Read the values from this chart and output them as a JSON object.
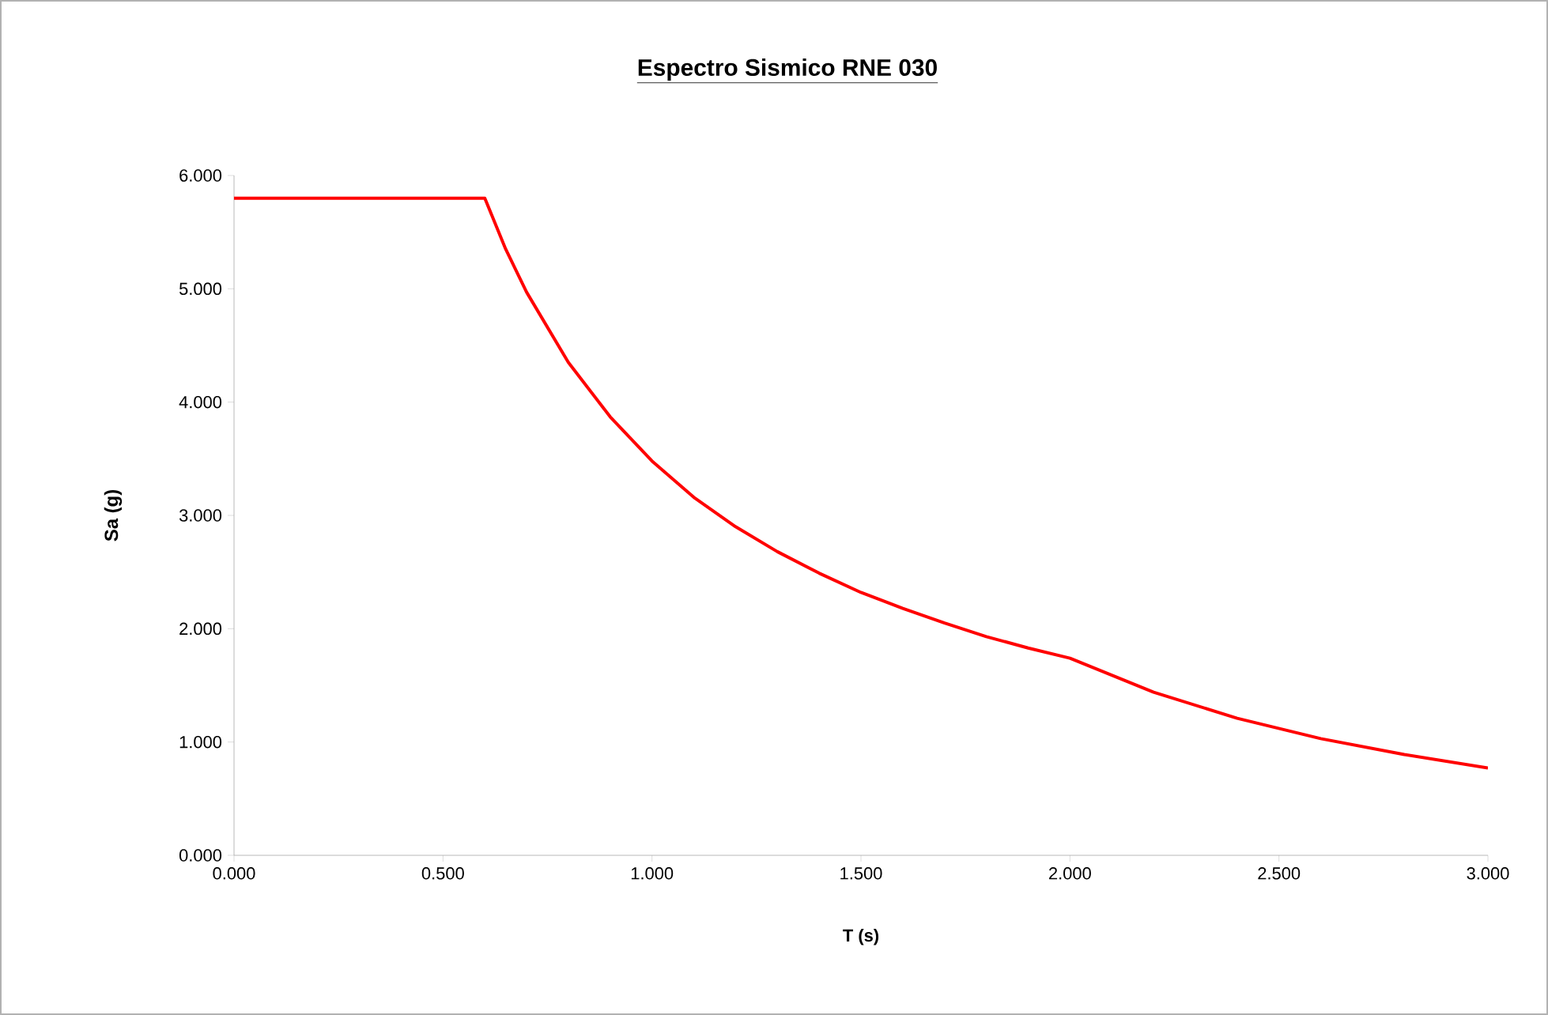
{
  "chart_data": {
    "type": "line",
    "title": "Espectro Sismico RNE 030",
    "xlabel": "T (s)",
    "ylabel": "Sa (g)",
    "x": [
      0,
      0.1,
      0.2,
      0.3,
      0.4,
      0.5,
      0.55,
      0.6,
      0.65,
      0.7,
      0.8,
      0.9,
      1.0,
      1.1,
      1.2,
      1.3,
      1.4,
      1.5,
      1.6,
      1.7,
      1.8,
      1.9,
      2.0,
      2.2,
      2.4,
      2.6,
      2.8,
      3.0
    ],
    "series": [
      {
        "color": "#ff0000",
        "values": [
          5.8,
          5.8,
          5.8,
          5.8,
          5.8,
          5.8,
          5.8,
          5.8,
          5.35,
          4.97,
          4.35,
          3.87,
          3.48,
          3.16,
          2.9,
          2.68,
          2.49,
          2.32,
          2.18,
          2.05,
          1.93,
          1.83,
          1.74,
          1.44,
          1.21,
          1.03,
          0.89,
          0.77
        ]
      }
    ],
    "xlim": [
      0,
      3
    ],
    "ylim": [
      0,
      6
    ],
    "xticks": [
      {
        "value": 0,
        "label": "0.000"
      },
      {
        "value": 0.5,
        "label": "0.500"
      },
      {
        "value": 1,
        "label": "1.000"
      },
      {
        "value": 1.5,
        "label": "1.500"
      },
      {
        "value": 2,
        "label": "2.000"
      },
      {
        "value": 2.5,
        "label": "2.500"
      },
      {
        "value": 3,
        "label": "3.000"
      }
    ],
    "yticks": [
      {
        "value": 0,
        "label": "0.000"
      },
      {
        "value": 1,
        "label": "1.000"
      },
      {
        "value": 2,
        "label": "2.000"
      },
      {
        "value": 3,
        "label": "3.000"
      },
      {
        "value": 4,
        "label": "4.000"
      },
      {
        "value": 5,
        "label": "5.000"
      },
      {
        "value": 6,
        "label": "6.000"
      }
    ],
    "grid": false,
    "marker": "none",
    "line_style": "solid"
  }
}
